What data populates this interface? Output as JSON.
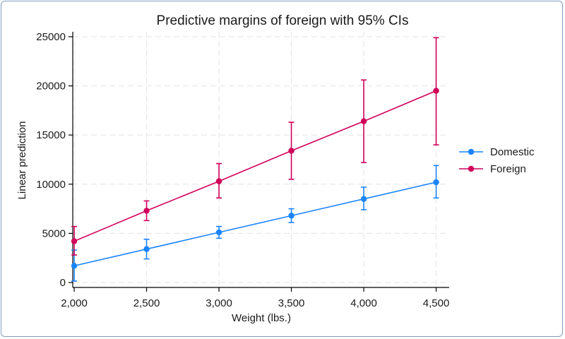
{
  "chart_data": {
    "type": "line",
    "title": "Predictive margins of foreign with 95% CIs",
    "xlabel": "Weight (lbs.)",
    "ylabel": "Linear prediction",
    "x": [
      2000,
      2500,
      3000,
      3500,
      4000,
      4500
    ],
    "x_tick_labels": [
      "2,000",
      "2,500",
      "3,000",
      "3,500",
      "4,000",
      "4,500"
    ],
    "y_ticks": [
      0,
      5000,
      10000,
      15000,
      20000,
      25000
    ],
    "y_tick_labels": [
      "0",
      "5000",
      "10000",
      "15000",
      "20000",
      "25000"
    ],
    "xlim": [
      1990,
      4590
    ],
    "ylim": [
      -500,
      25500
    ],
    "grid": true,
    "legend_position": "right",
    "series": [
      {
        "name": "Domestic",
        "color": "#1a85ff",
        "values": [
          1700,
          3400,
          5100,
          6800,
          8500,
          10200
        ],
        "ci_lower": [
          150,
          2400,
          4500,
          6100,
          7400,
          8600
        ],
        "ci_upper": [
          3300,
          4400,
          5700,
          7500,
          9700,
          11900
        ]
      },
      {
        "name": "Foreign",
        "color": "#d1005a",
        "values": [
          4200,
          7300,
          10300,
          13400,
          16400,
          19500
        ],
        "ci_lower": [
          2800,
          6300,
          8600,
          10500,
          12200,
          14000
        ],
        "ci_upper": [
          5700,
          8300,
          12100,
          16300,
          20600,
          24900
        ]
      }
    ]
  }
}
